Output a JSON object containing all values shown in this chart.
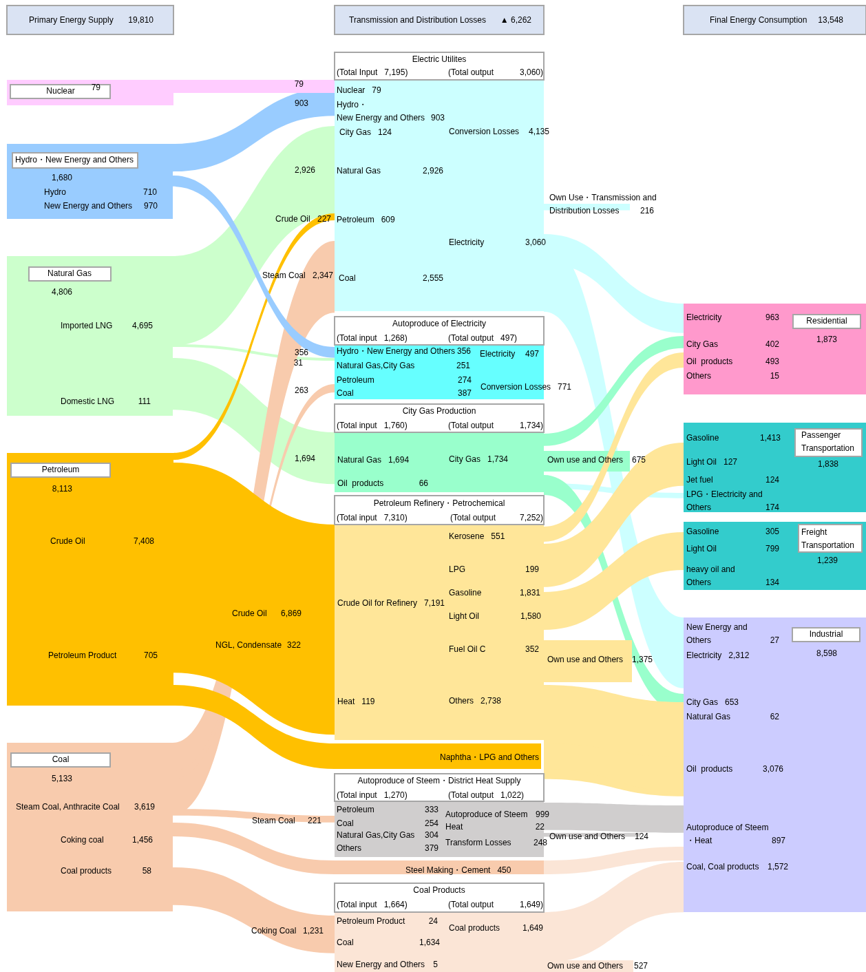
{
  "chart_data": {
    "type": "other",
    "categories": [
      "Primary Energy Supply",
      "Transmission and Distribution Losses",
      "Final Energy Consumption",
      "Nuclear",
      "Hydro・New Energy and Others",
      "Hydro",
      "New Energy and Others",
      "Natural Gas",
      "Imported LNG",
      "Domestic LNG",
      "Crude Oil",
      "Steam Coal",
      "Petroleum",
      "Crude Oil",
      "Petroleum Product",
      "Crude Oil",
      "NGL, Condensate",
      "Coal",
      "Steam Coal, Anthracite Coal",
      "Coking coal",
      "Coal products",
      "Steam Coal",
      "Coking Coal",
      "(Total Input",
      "(Total output",
      "Nuclear",
      "Hydro・\nNew Energy and Others",
      "City Gas",
      "Conversion Losses",
      "Natural Gas",
      "Petroleum",
      "Electricity",
      "Coal",
      "Own Use・Transmission and\nDistribution Losses",
      "(Total input",
      "(Total output",
      "Hydro・New Energy and Others",
      "Natural Gas,City Gas",
      "Petroleum",
      "Coal",
      "Electricity",
      "Conversion Losses",
      "(Total input",
      "(Total output",
      "Natural Gas",
      "Oil  products",
      "City Gas",
      "Own use and Others",
      "(Total input",
      "(Total output",
      "Kerosene",
      "LPG",
      "Gasoline",
      "Crude Oil for Refinery",
      "Light Oil",
      "Fuel Oil C",
      "Own use and Others",
      "Heat",
      "Others",
      "(Total input",
      "(Total output",
      "Petroleum",
      "Coal",
      "Natural Gas,City Gas",
      "Others",
      "Autoproduce of Steem",
      "Heat",
      "Transform Losses",
      "Own use and Others",
      "Steel Making・Cement",
      "(Total input",
      "(Total output",
      "Petroleum Product",
      "Coal products",
      "Coal",
      "New Energy and Others",
      "Own use and Others",
      "Residential",
      "Electricity",
      "City Gas",
      "Oil  products",
      "Others",
      "Passenger\nTransportation",
      "Gasoline",
      "Light Oil",
      "Jet fuel",
      "LPG・Electricity and\nOthers",
      "Freight\nTransportation",
      "Gasoline",
      "Light Oil",
      "heavy oil and\nOthers",
      "Industrial",
      "New Energy and\nOthers",
      "Electricity",
      "City Gas",
      "Natural Gas",
      "Oil  products",
      "Autoproduce of Steem\n・Heat",
      "Coal, Coal products"
    ],
    "values": [
      19810,
      6262,
      13548,
      79,
      1680,
      710,
      970,
      4806,
      4695,
      111,
      227,
      2347,
      8113,
      7408,
      705,
      6869,
      322,
      5133,
      3619,
      1456,
      58,
      221,
      1231,
      7195,
      3060,
      79,
      903,
      124,
      4135,
      2926,
      609,
      3060,
      2555,
      216,
      1268,
      497,
      356,
      251,
      274,
      387,
      497,
      771,
      1760,
      1734,
      1694,
      66,
      1734,
      675,
      7310,
      7252,
      551,
      199,
      1831,
      7191,
      1580,
      352,
      1375,
      119,
      2738,
      1270,
      1022,
      333,
      254,
      304,
      379,
      999,
      22,
      248,
      124,
      450,
      1664,
      1649,
      24,
      1649,
      1634,
      5,
      527,
      1873,
      963,
      402,
      493,
      15,
      1838,
      1413,
      127,
      124,
      174,
      1239,
      305,
      799,
      134,
      8598,
      27,
      2312,
      653,
      62,
      3076,
      897,
      1572
    ],
    "value_labels": [
      "19,810",
      "▲ 6,262",
      "13,548",
      "79",
      "1,680",
      "710",
      "970",
      "4,806",
      "4,695",
      "111",
      "227",
      "2,347",
      "8,113",
      "7,408",
      "705",
      "6,869",
      "322",
      "5,133",
      "3,619",
      "1,456",
      "58",
      "221",
      "1,231",
      "7,195)",
      "3,060)",
      "79",
      "903",
      "124",
      "4,135",
      "2,926",
      "609",
      "3,060",
      "2,555",
      "216",
      "1,268)",
      "497)",
      "356",
      "251",
      "274",
      "387",
      "497",
      "771",
      "1,760)",
      "1,734)",
      "1,694",
      "66",
      "1,734",
      "675",
      "7,310)",
      "7,252)",
      "551",
      "199",
      "1,831",
      "7,191",
      "1,580",
      "352",
      "1,375",
      "119",
      "2,738",
      "1,270)",
      "1,022)",
      "333",
      "254",
      "304",
      "379",
      "999",
      "22",
      "248",
      "124",
      "450",
      "1,664)",
      "1,649)",
      "24",
      "1,649",
      "1,634",
      "5",
      "527",
      "1,873",
      "963",
      "402",
      "493",
      "15",
      "1,838",
      "1,413",
      "127",
      "124",
      "174",
      "1,239",
      "305",
      "799",
      "134",
      "8,598",
      "27",
      "2,312",
      "653",
      "62",
      "3,076",
      "897",
      "1,572"
    ],
    "annotations": [
      "Electric Utilites",
      "Autoproduce of Electricity",
      "City Gas Production",
      "Petroleum Refinery・Petrochemical",
      "Naphtha・LPG and Others",
      "Autoproduce of Steem・District Heat Supply",
      "Coal Products",
      "79",
      "903",
      "2,926",
      "356",
      "31",
      "263",
      "1,694"
    ]
  }
}
